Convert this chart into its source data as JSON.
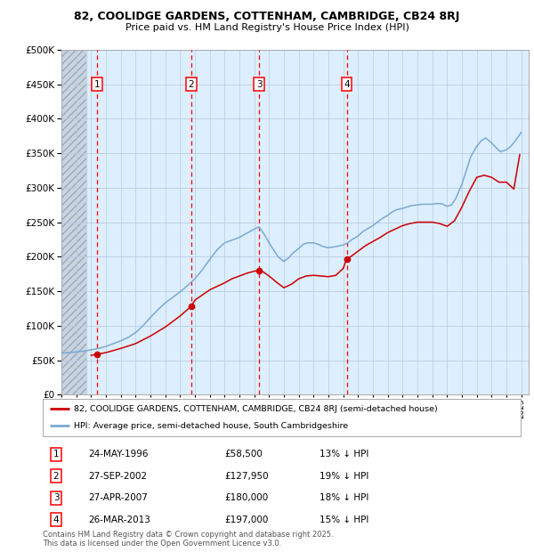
{
  "title1": "82, COOLIDGE GARDENS, COTTENHAM, CAMBRIDGE, CB24 8RJ",
  "title2": "Price paid vs. HM Land Registry's House Price Index (HPI)",
  "legend_red": "82, COOLIDGE GARDENS, COTTENHAM, CAMBRIDGE, CB24 8RJ (semi-detached house)",
  "legend_blue": "HPI: Average price, semi-detached house, South Cambridgeshire",
  "footer": "Contains HM Land Registry data © Crown copyright and database right 2025.\nThis data is licensed under the Open Government Licence v3.0.",
  "purchases": [
    {
      "num": 1,
      "date": "24-MAY-1996",
      "price": 58500,
      "year": 1996.38,
      "hpi_pct": "13% ↓ HPI"
    },
    {
      "num": 2,
      "date": "27-SEP-2002",
      "price": 127950,
      "year": 2002.74,
      "hpi_pct": "19% ↓ HPI"
    },
    {
      "num": 3,
      "date": "27-APR-2007",
      "price": 180000,
      "year": 2007.32,
      "hpi_pct": "18% ↓ HPI"
    },
    {
      "num": 4,
      "date": "26-MAR-2013",
      "price": 197000,
      "year": 2013.23,
      "hpi_pct": "15% ↓ HPI"
    }
  ],
  "ylim": [
    0,
    500000
  ],
  "xlim_start": 1994.0,
  "xlim_end": 2025.5,
  "hatch_end": 1995.7,
  "bg_color": "#ddeeff",
  "hatch_color": "#c8d4e0",
  "grid_color": "#b8cce0",
  "red_color": "#cc0000",
  "blue_color": "#7aaad0",
  "years_hpi": [
    1994.0,
    1994.5,
    1995.0,
    1995.5,
    1996.0,
    1996.5,
    1997.0,
    1997.5,
    1998.0,
    1998.5,
    1999.0,
    1999.5,
    2000.0,
    2000.5,
    2001.0,
    2001.5,
    2002.0,
    2002.5,
    2003.0,
    2003.5,
    2004.0,
    2004.5,
    2005.0,
    2005.5,
    2006.0,
    2006.5,
    2007.0,
    2007.3,
    2007.5,
    2007.8,
    2008.0,
    2008.3,
    2008.6,
    2009.0,
    2009.3,
    2009.6,
    2010.0,
    2010.3,
    2010.6,
    2011.0,
    2011.3,
    2011.6,
    2012.0,
    2012.3,
    2012.6,
    2013.0,
    2013.3,
    2013.6,
    2014.0,
    2014.3,
    2014.6,
    2015.0,
    2015.3,
    2015.6,
    2016.0,
    2016.3,
    2016.6,
    2017.0,
    2017.3,
    2017.6,
    2018.0,
    2018.3,
    2018.6,
    2019.0,
    2019.3,
    2019.6,
    2020.0,
    2020.3,
    2020.6,
    2021.0,
    2021.3,
    2021.6,
    2022.0,
    2022.3,
    2022.6,
    2023.0,
    2023.3,
    2023.6,
    2024.0,
    2024.3,
    2024.6,
    2025.0
  ],
  "hpi_vals": [
    60000,
    61000,
    62000,
    63000,
    65000,
    67000,
    70000,
    74000,
    78000,
    83000,
    90000,
    100000,
    112000,
    123000,
    133000,
    141000,
    149000,
    158000,
    168000,
    181000,
    196000,
    210000,
    220000,
    224000,
    228000,
    234000,
    240000,
    243000,
    238000,
    228000,
    220000,
    210000,
    200000,
    193000,
    198000,
    205000,
    212000,
    218000,
    220000,
    220000,
    218000,
    215000,
    213000,
    214000,
    215000,
    217000,
    220000,
    225000,
    230000,
    236000,
    240000,
    245000,
    250000,
    255000,
    260000,
    265000,
    268000,
    270000,
    272000,
    274000,
    275000,
    276000,
    276000,
    276000,
    277000,
    277000,
    273000,
    275000,
    285000,
    305000,
    325000,
    345000,
    360000,
    368000,
    372000,
    365000,
    358000,
    352000,
    355000,
    360000,
    368000,
    380000
  ],
  "red_years": [
    1996.0,
    1996.38,
    1997.0,
    1998.0,
    1999.0,
    2000.0,
    2001.0,
    2002.0,
    2002.74,
    2003.0,
    2004.0,
    2005.0,
    2005.5,
    2006.0,
    2006.5,
    2007.0,
    2007.32,
    2007.6,
    2008.0,
    2008.5,
    2009.0,
    2009.5,
    2010.0,
    2010.5,
    2011.0,
    2011.5,
    2012.0,
    2012.5,
    2013.0,
    2013.23,
    2013.5,
    2014.0,
    2014.5,
    2015.0,
    2015.5,
    2016.0,
    2016.5,
    2017.0,
    2017.5,
    2018.0,
    2018.5,
    2019.0,
    2019.5,
    2020.0,
    2020.5,
    2021.0,
    2021.5,
    2022.0,
    2022.5,
    2023.0,
    2023.5,
    2024.0,
    2024.5,
    2024.9
  ],
  "red_vals": [
    57000,
    58500,
    61000,
    67000,
    74000,
    85000,
    98000,
    114000,
    127950,
    137000,
    152000,
    162000,
    168000,
    172000,
    176000,
    179000,
    180000,
    178000,
    172000,
    163000,
    155000,
    160000,
    168000,
    172000,
    173000,
    172000,
    171000,
    173000,
    183000,
    197000,
    200000,
    208000,
    216000,
    222000,
    228000,
    235000,
    240000,
    245000,
    248000,
    250000,
    250000,
    250000,
    248000,
    244000,
    252000,
    272000,
    295000,
    315000,
    318000,
    315000,
    308000,
    308000,
    298000,
    348000
  ]
}
